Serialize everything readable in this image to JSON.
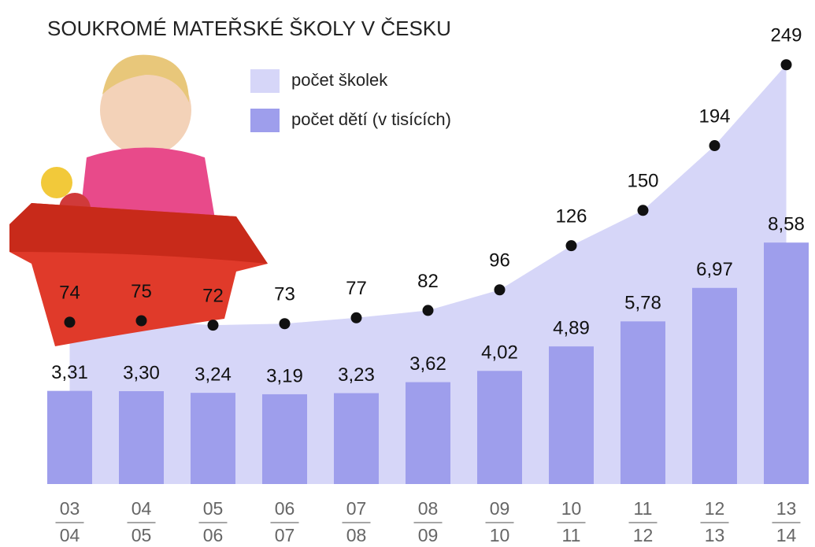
{
  "chart_data": {
    "type": "bar-area",
    "title": "SOUKROMÉ MATEŘSKÉ ŠKOLY V ČESKU",
    "categories": [
      [
        "03",
        "04"
      ],
      [
        "04",
        "05"
      ],
      [
        "05",
        "06"
      ],
      [
        "06",
        "07"
      ],
      [
        "07",
        "08"
      ],
      [
        "08",
        "09"
      ],
      [
        "09",
        "10"
      ],
      [
        "10",
        "11"
      ],
      [
        "11",
        "12"
      ],
      [
        "12",
        "13"
      ],
      [
        "13",
        "14"
      ]
    ],
    "series": [
      {
        "name": "počet školek",
        "type": "area",
        "axis": "y2",
        "color": "#d6d6f8",
        "values": [
          74,
          75,
          72,
          73,
          77,
          82,
          96,
          126,
          150,
          194,
          249
        ]
      },
      {
        "name": "počet dětí (v tisících)",
        "type": "bar",
        "color": "#9e9eec",
        "values": [
          3.31,
          3.3,
          3.24,
          3.19,
          3.23,
          3.62,
          4.02,
          4.89,
          5.78,
          6.97,
          8.58
        ],
        "value_labels": [
          "3,31",
          "3,30",
          "3,24",
          "3,19",
          "3,23",
          "3,62",
          "4,02",
          "4,89",
          "5,78",
          "6,97",
          "8,58"
        ]
      }
    ],
    "ylim": [
      0,
      17.2
    ],
    "y2lim": [
      -36,
      293
    ]
  }
}
